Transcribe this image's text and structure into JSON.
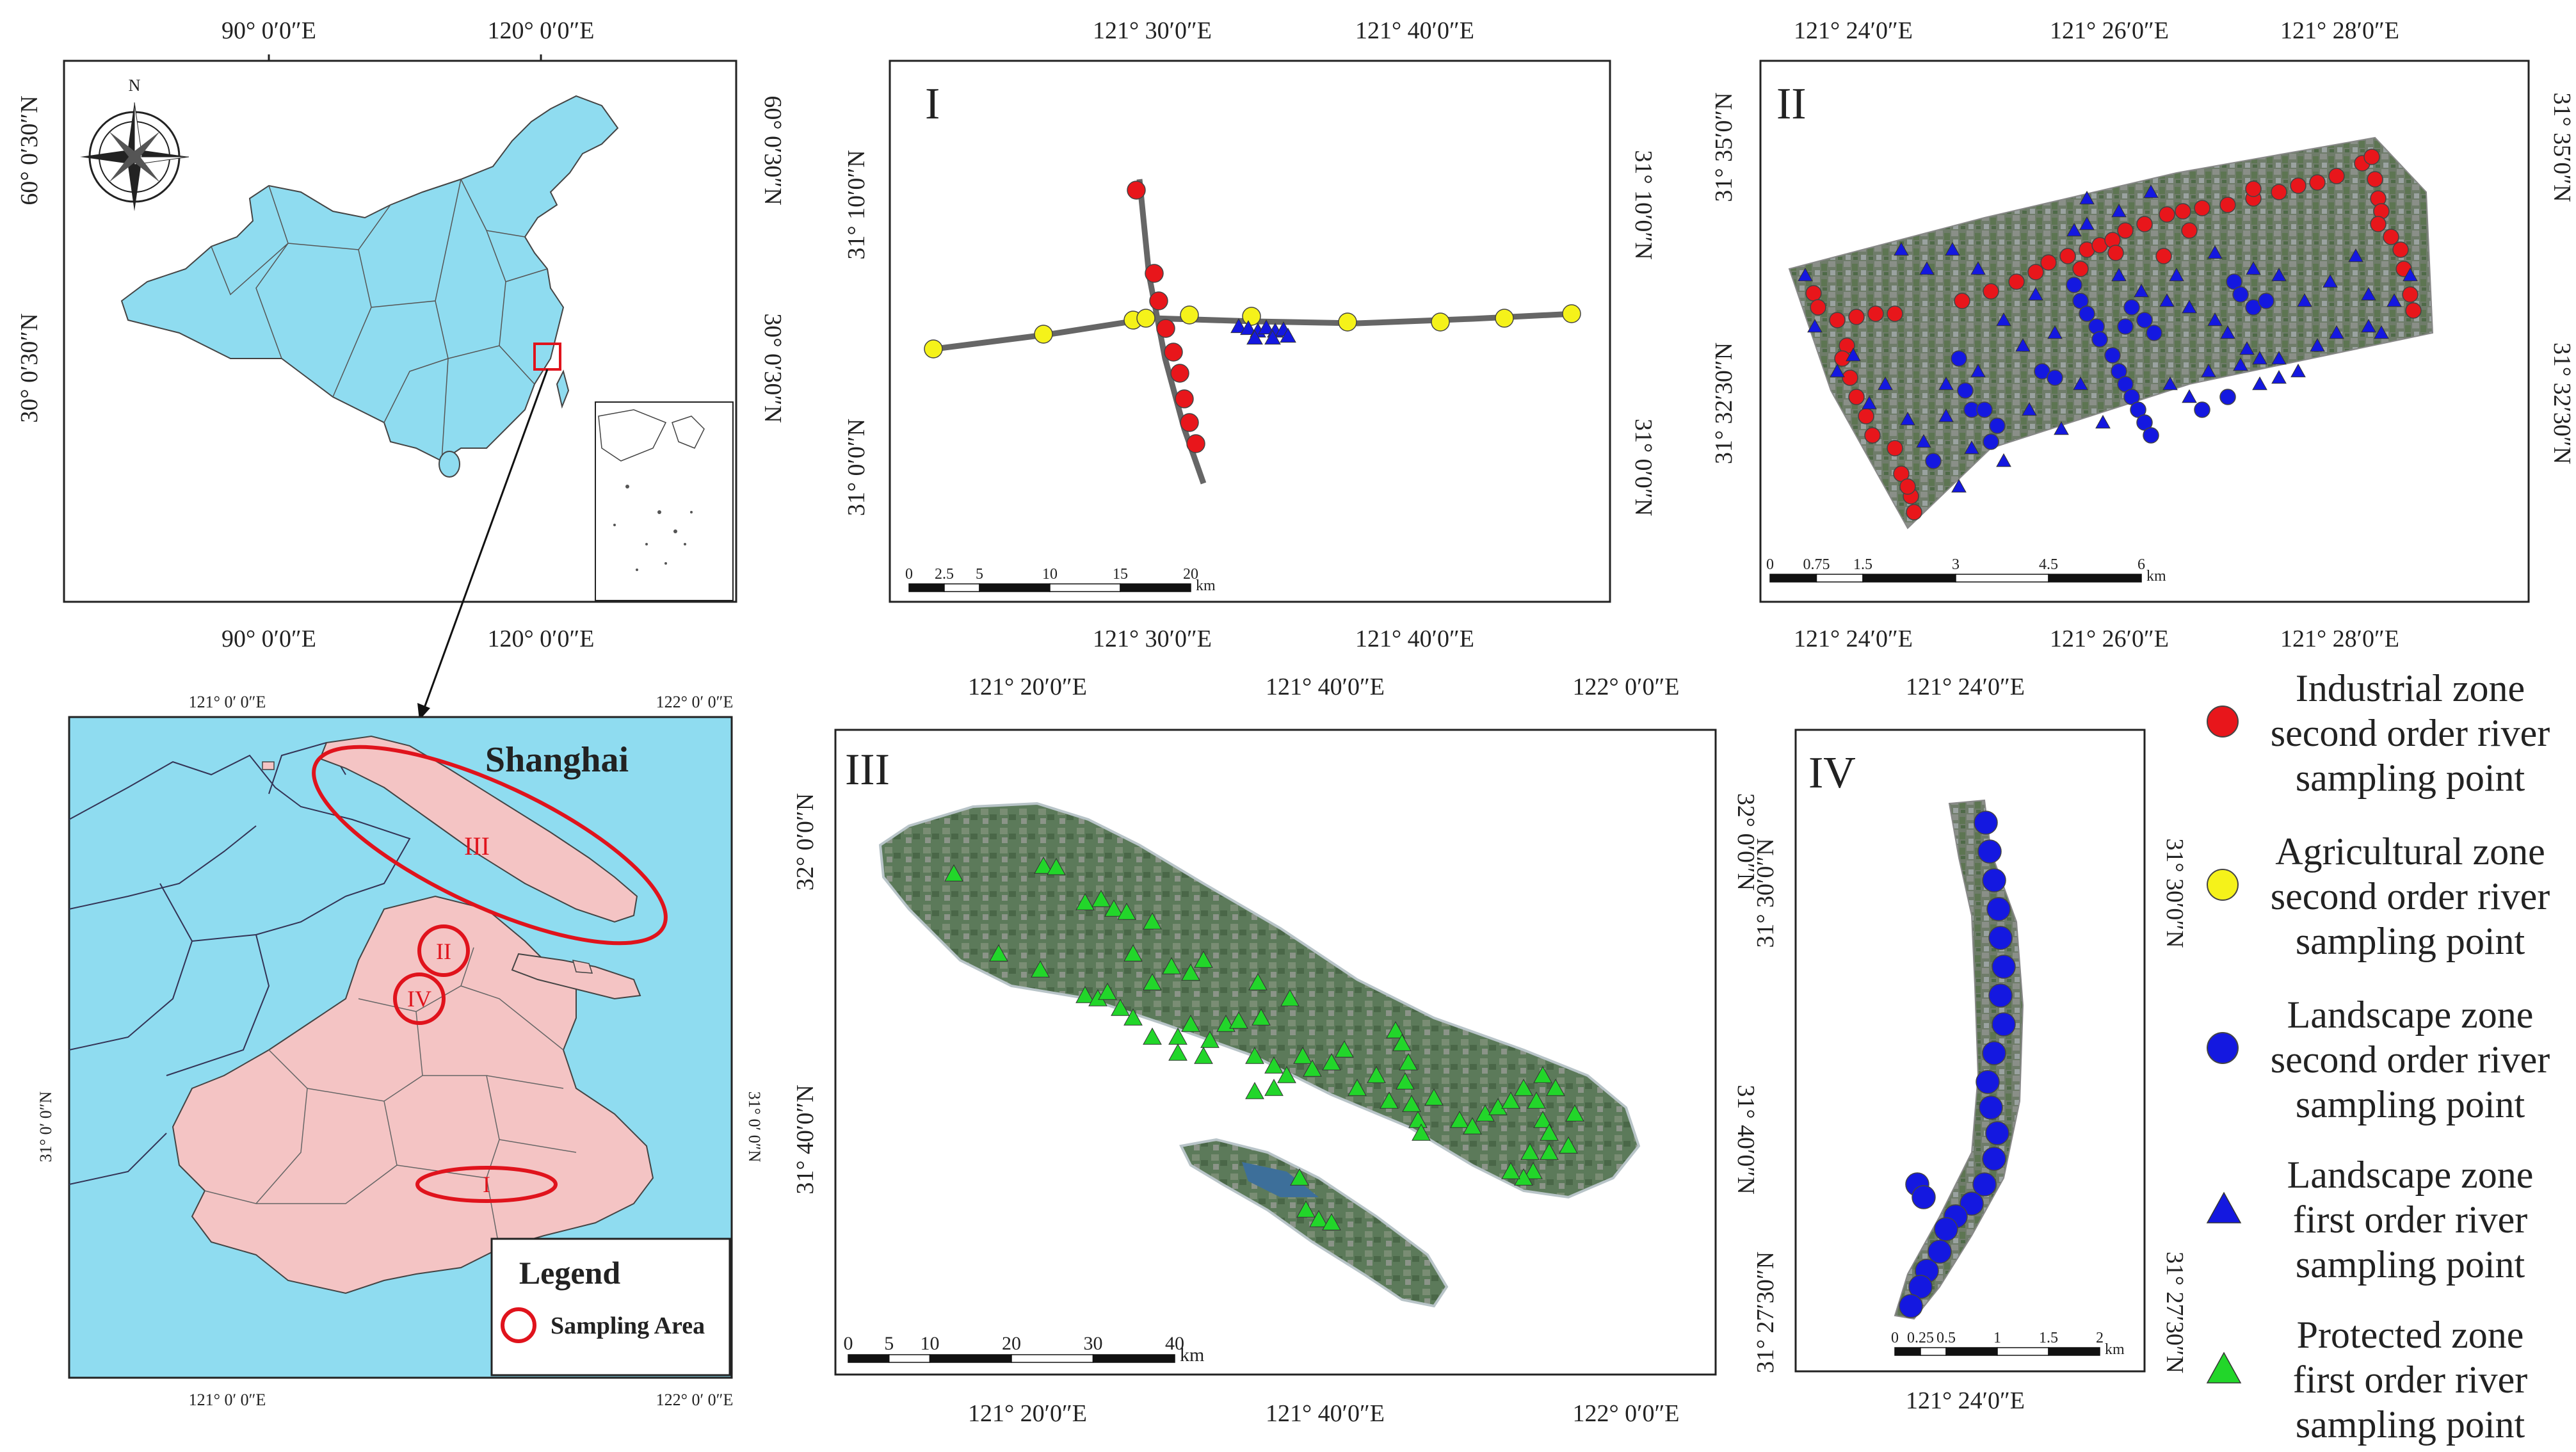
{
  "figure": {
    "china": {
      "top_labels": [
        "90° 0′0″E",
        "120° 0′0″E"
      ],
      "bottom_labels": [
        "90° 0′0″E",
        "120° 0′0″E"
      ],
      "left_labels": [
        "60° 0′30″N",
        "30° 0′30″N"
      ],
      "right_labels": [
        "60° 0′30″N",
        "30° 0′30″N"
      ],
      "north": "N"
    },
    "shanghai": {
      "top_labels": [
        "121°  0′ 0″E",
        "122°  0′ 0″E"
      ],
      "bottom_labels": [
        "121°  0′ 0″E",
        "122°  0′ 0″E"
      ],
      "left_label": "31°  0′ 0″N",
      "right_label": "31°  0′ 0″N",
      "title": "Shanghai",
      "areas": [
        "III",
        "II",
        "IV",
        "I"
      ],
      "legend_title": "Legend",
      "legend_item": "Sampling Area"
    },
    "panel_I": {
      "id": "I",
      "top_labels": [
        "121° 30′0″E",
        "121° 40′0″E"
      ],
      "bottom_labels": [
        "121° 30′0″E",
        "121° 40′0″E"
      ],
      "left_labels": [
        "31° 10′0″N",
        "31° 0′0″N"
      ],
      "right_labels": [
        "31° 10′0″N",
        "31° 0′0″N"
      ],
      "scale_ticks": [
        "0",
        "2.5",
        "5",
        "10",
        "15",
        "20"
      ],
      "scale_unit": "km"
    },
    "panel_II": {
      "id": "II",
      "top_labels": [
        "121° 24′0″E",
        "121° 26′0″E",
        "121° 28′0″E"
      ],
      "bottom_labels": [
        "121° 24′0″E",
        "121° 26′0″E",
        "121° 28′0″E"
      ],
      "left_labels": [
        "31° 35′0″N",
        "31° 32′30″N"
      ],
      "right_labels": [
        "31° 35′0″N",
        "31° 32′30″N"
      ],
      "scale_ticks": [
        "0",
        "0.75",
        "1.5",
        "3",
        "4.5",
        "6"
      ],
      "scale_unit": "km"
    },
    "panel_III": {
      "id": "III",
      "top_labels": [
        "121° 20′0″E",
        "121° 40′0″E",
        "122° 0′0″E"
      ],
      "bottom_labels": [
        "121° 20′0″E",
        "121° 40′0″E",
        "122° 0′0″E"
      ],
      "left_labels": [
        "32° 0′0″N",
        "31° 40′0″N"
      ],
      "right_labels": [
        "32° 0′0″N",
        "31° 40′0″N"
      ],
      "scale_ticks": [
        "0",
        "5",
        "10",
        "20",
        "30",
        "40"
      ],
      "scale_unit": "km"
    },
    "panel_IV": {
      "id": "IV",
      "top_label": "121° 24′0″E",
      "bottom_label": "121° 24′0″E",
      "left_labels": [
        "31° 30′0″N",
        "31° 27′30″N"
      ],
      "right_labels": [
        "31° 30′0″N",
        "31° 27′30″N"
      ],
      "scale_ticks": [
        "0",
        "0.25",
        "0.5",
        "1",
        "1.5",
        "2"
      ],
      "scale_unit": "km"
    },
    "legend": [
      {
        "lines": [
          "Industrial zone",
          "second order river",
          "sampling point"
        ],
        "color": "#e8161b",
        "shape": "circle"
      },
      {
        "lines": [
          "Agricultural zone",
          "second order river",
          "sampling point"
        ],
        "color": "#f5f21a",
        "shape": "circle"
      },
      {
        "lines": [
          "Landscape  zone",
          "second order river",
          "sampling point"
        ],
        "color": "#1418e0",
        "shape": "circle"
      },
      {
        "lines": [
          "Landscape  zone",
          "first order river",
          "sampling point"
        ],
        "color": "#1418e0",
        "shape": "triangle"
      },
      {
        "lines": [
          "Protected  zone",
          "first order river",
          "sampling point"
        ],
        "color": "#22d62a",
        "shape": "triangle"
      }
    ],
    "colors": {
      "china_fill": "#8fdcf0",
      "shanghai_fill": "#f4c4c4",
      "sampling_outline": "#e0131c"
    }
  }
}
